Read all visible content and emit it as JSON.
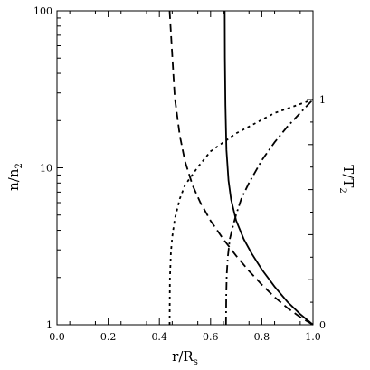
{
  "chart_data": {
    "type": "line",
    "xlabel": "r/R",
    "xlabel_sub": "s",
    "ylabel_left": "n/n",
    "ylabel_left_sub": "2",
    "ylabel_right": "T/T",
    "ylabel_right_sub": "2",
    "xlim": [
      0.0,
      1.0
    ],
    "ylim_left": [
      1,
      100
    ],
    "yscale_left": "log",
    "ylim_right": [
      0,
      1.0
    ],
    "x_ticks": [
      0.0,
      0.2,
      0.4,
      0.6,
      0.8,
      1.0
    ],
    "x_tick_labels": [
      "0.0",
      "0.2",
      "0.4",
      "0.6",
      "0.8",
      "1.0"
    ],
    "y_left_ticks": [
      1,
      10,
      100
    ],
    "y_left_tick_labels": [
      "1",
      "10",
      "100"
    ],
    "y_right_ticks": [
      0,
      1
    ],
    "y_right_tick_labels": [
      "0",
      "1"
    ],
    "grid": false,
    "series": [
      {
        "style": "dashed",
        "axis": "left",
        "x": [
          0.44,
          0.46,
          0.48,
          0.5,
          0.53,
          0.56,
          0.6,
          0.65,
          0.7,
          0.75,
          0.8,
          0.85,
          0.9,
          0.95,
          1.0
        ],
        "y": [
          100,
          28,
          16,
          11,
          7.7,
          6.0,
          4.6,
          3.5,
          2.75,
          2.2,
          1.8,
          1.5,
          1.28,
          1.12,
          1.0
        ]
      },
      {
        "style": "solid",
        "axis": "left",
        "x": [
          0.655,
          0.656,
          0.658,
          0.662,
          0.67,
          0.68,
          0.7,
          0.73,
          0.76,
          0.8,
          0.85,
          0.9,
          0.95,
          1.0
        ],
        "y": [
          100,
          50,
          25,
          13,
          8.3,
          6.3,
          4.6,
          3.5,
          2.85,
          2.25,
          1.75,
          1.4,
          1.17,
          1.0
        ]
      },
      {
        "style": "dotted",
        "axis": "right",
        "x": [
          0.44,
          0.441,
          0.445,
          0.45,
          0.46,
          0.48,
          0.5,
          0.55,
          0.6,
          0.65,
          0.7,
          0.75,
          0.8,
          0.85,
          0.9,
          0.95,
          1.0
        ],
        "y": [
          0.0,
          0.2,
          0.32,
          0.39,
          0.47,
          0.56,
          0.62,
          0.7,
          0.77,
          0.81,
          0.85,
          0.88,
          0.91,
          0.94,
          0.96,
          0.98,
          1.0
        ]
      },
      {
        "style": "dashdot",
        "axis": "right",
        "x": [
          0.66,
          0.661,
          0.663,
          0.667,
          0.675,
          0.69,
          0.7,
          0.72,
          0.75,
          0.8,
          0.85,
          0.9,
          0.95,
          1.0
        ],
        "y": [
          0.0,
          0.13,
          0.22,
          0.3,
          0.38,
          0.45,
          0.49,
          0.56,
          0.63,
          0.73,
          0.81,
          0.88,
          0.94,
          1.0
        ]
      }
    ]
  }
}
